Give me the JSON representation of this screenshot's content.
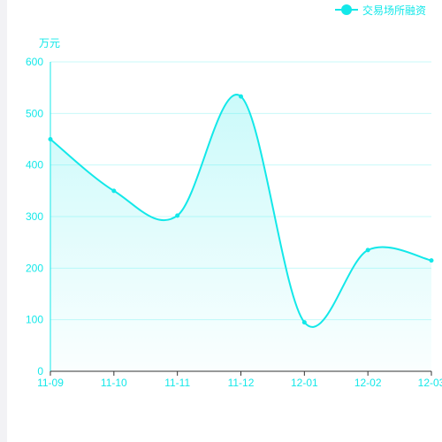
{
  "chart_data": {
    "type": "line",
    "smooth": true,
    "area_fill": true,
    "categories": [
      "11-09",
      "11-10",
      "11-11",
      "11-12",
      "12-01",
      "12-02",
      "12-03"
    ],
    "series": [
      {
        "name": "交易场所融资",
        "values": [
          450,
          350,
          302,
          533,
          95,
          235,
          215
        ]
      }
    ],
    "y_unit": "万元",
    "ylim": [
      0,
      600
    ],
    "y_ticks": [
      "0",
      "100",
      "200",
      "300",
      "400",
      "500",
      "600"
    ],
    "grid": true,
    "legend_position": "top-right",
    "colors": {
      "series": "#13e8e9",
      "grid": "#c8fafa",
      "axis": "#13e8e9"
    }
  }
}
